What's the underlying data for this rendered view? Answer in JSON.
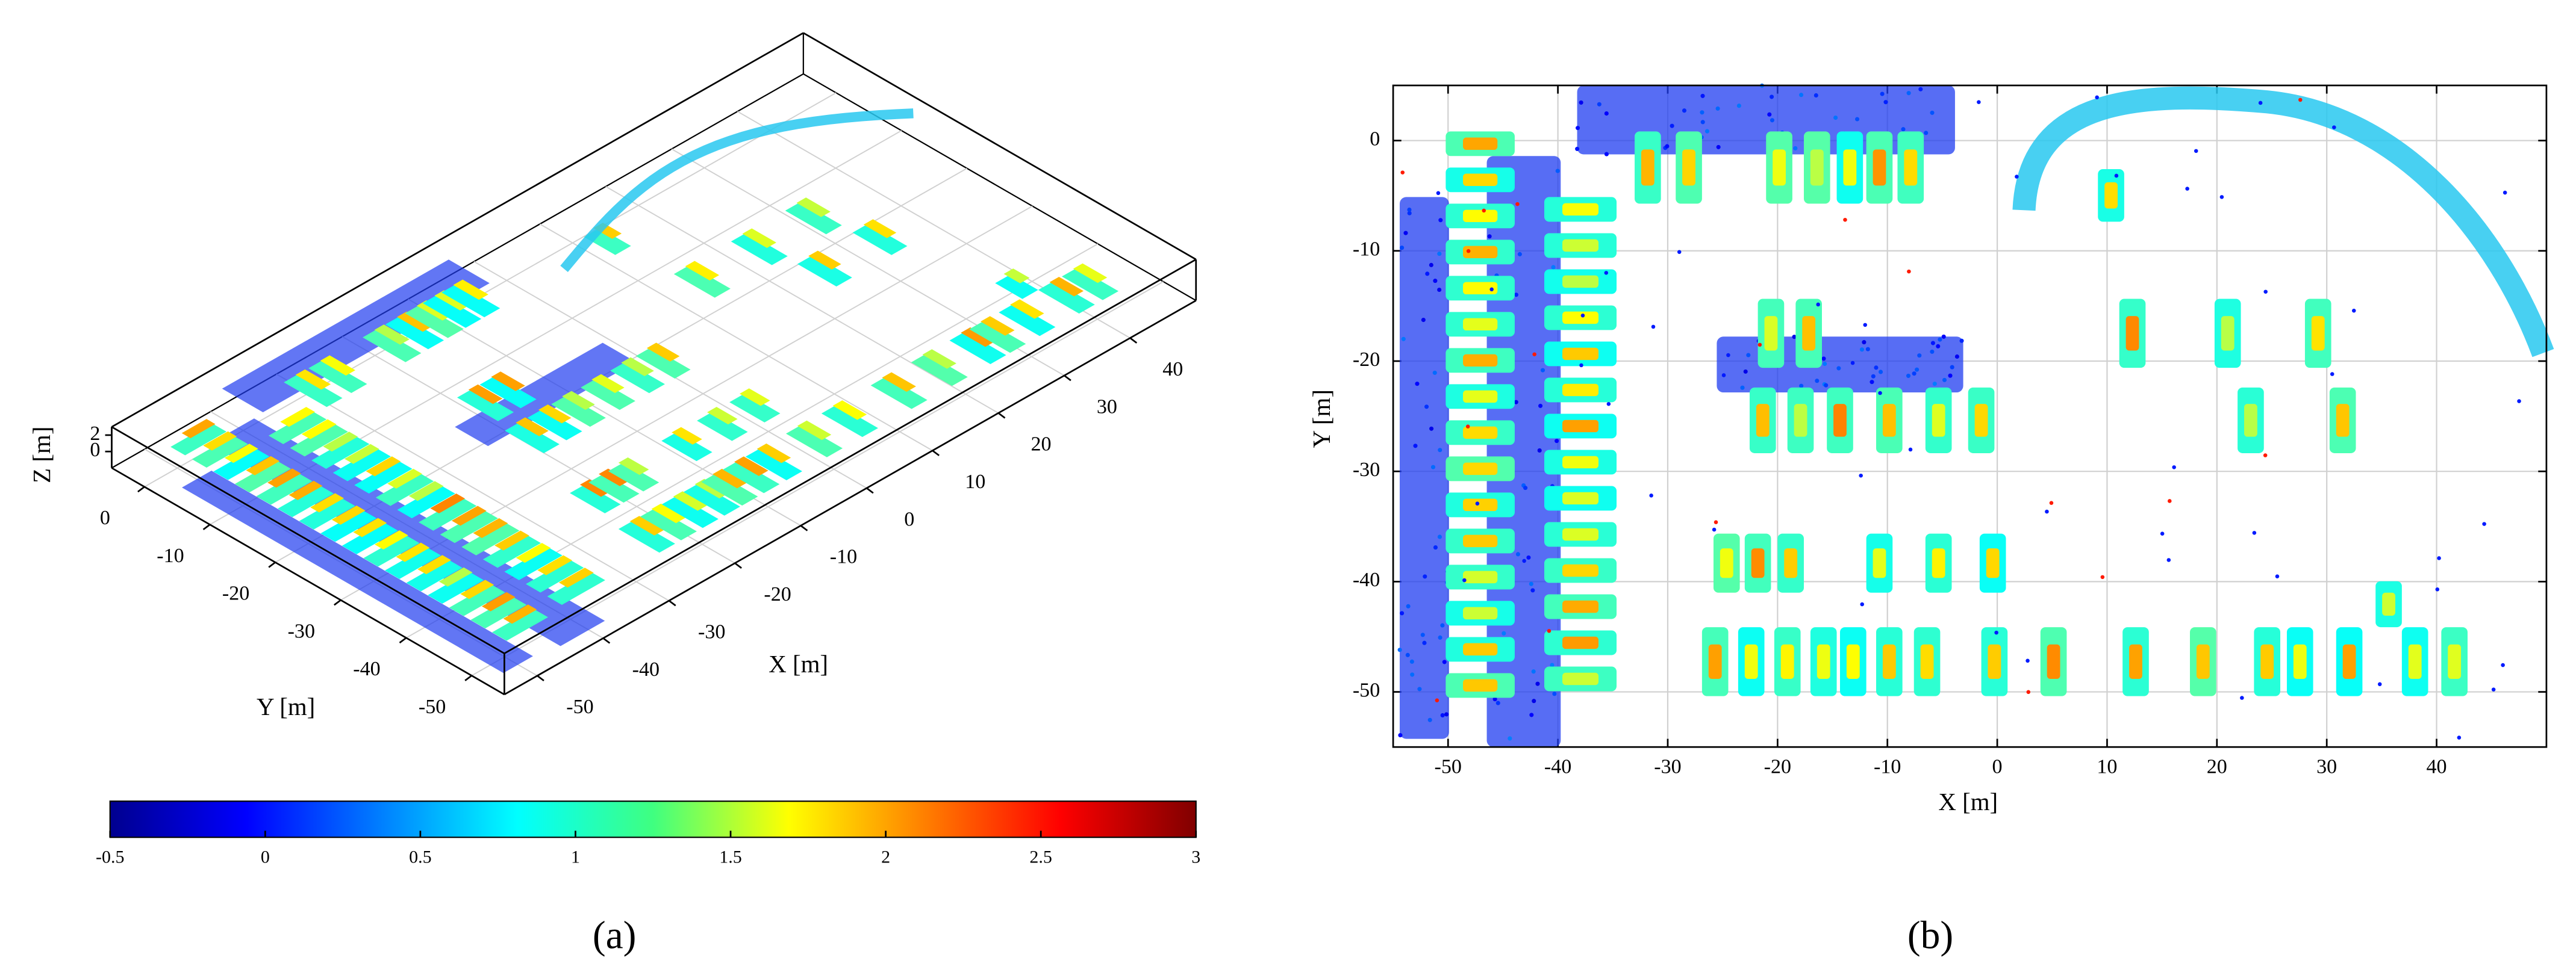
{
  "chart_data": [
    {
      "type": "scatter3d",
      "caption": "(a)",
      "xlabel": "X [m]",
      "ylabel": "Y [m]",
      "zlabel": "Z [m]",
      "xlim": [
        -55,
        50
      ],
      "ylim": [
        -55,
        5
      ],
      "zlim": [
        -2,
        3
      ],
      "xticks": [
        -50,
        -40,
        -30,
        -20,
        -10,
        0,
        10,
        20,
        30,
        40
      ],
      "yticks": [
        0,
        -10,
        -20,
        -30,
        -40,
        -50
      ],
      "zticks": [
        0,
        2
      ],
      "grid": true,
      "colorbar": {
        "colormap": "jet",
        "clim": [
          -0.5,
          3
        ],
        "ticks": [
          -0.5,
          0,
          0.5,
          1,
          1.5,
          2,
          2.5,
          3
        ]
      }
    },
    {
      "type": "scatter",
      "caption": "(b)",
      "xlabel": "X [m]",
      "ylabel": "Y [m]",
      "xlim": [
        -55,
        50
      ],
      "ylim": [
        -55,
        5
      ],
      "xticks": [
        -50,
        -40,
        -30,
        -20,
        -10,
        0,
        10,
        20,
        30,
        40
      ],
      "yticks": [
        0,
        -10,
        -20,
        -30,
        -40,
        -50
      ],
      "grid": true
    }
  ]
}
